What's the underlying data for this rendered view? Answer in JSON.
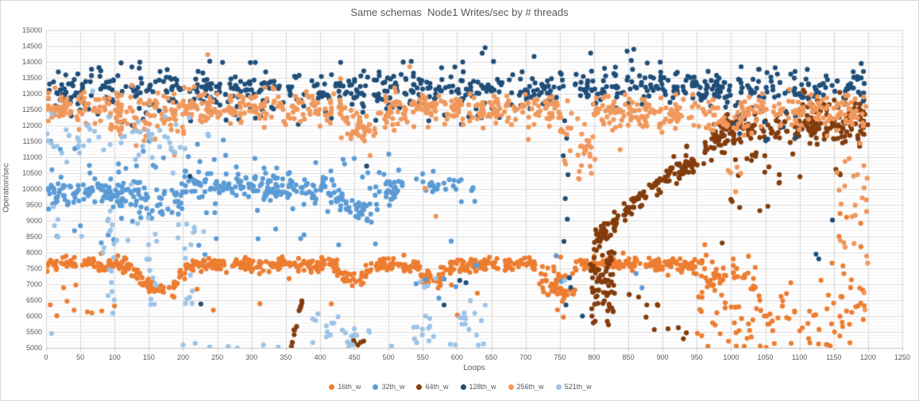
{
  "chart_data": {
    "type": "scatter",
    "title": "Same schemas  Node1 Writes/sec by # threads",
    "xlabel": "Loops",
    "ylabel": "Operation/sec",
    "xlim": [
      0,
      1250
    ],
    "ylim": [
      5000,
      15000
    ],
    "x_tick_step": 50,
    "y_tick_step": 500,
    "y_minor_step": 100,
    "grid": true,
    "legend_position": "bottom",
    "marker_radius": 3.1,
    "colors": {
      "grid_major": "#D9D9D9",
      "grid_minor": "#F2F2F2",
      "axis_line": "#BFBFBF",
      "tick_text": "#595959",
      "title_text": "#595959"
    },
    "series": [
      {
        "name": "16th_w",
        "color": "#ED7D31",
        "clusters": [
          [
            0,
            120,
            7600,
            7600,
            115,
            85
          ],
          [
            120,
            152,
            7550,
            6950,
            140,
            26
          ],
          [
            150,
            188,
            6820,
            6820,
            120,
            26
          ],
          [
            186,
            206,
            6950,
            7500,
            110,
            14
          ],
          [
            204,
            420,
            7620,
            7620,
            105,
            155
          ],
          [
            420,
            452,
            7500,
            7050,
            120,
            24
          ],
          [
            450,
            478,
            7050,
            7450,
            110,
            18
          ],
          [
            476,
            546,
            7600,
            7600,
            100,
            52
          ],
          [
            544,
            592,
            7250,
            7250,
            190,
            40
          ],
          [
            590,
            714,
            7620,
            7620,
            105,
            92
          ],
          [
            715,
            772,
            7050,
            7050,
            420,
            50
          ],
          [
            772,
            958,
            7620,
            7620,
            115,
            135
          ],
          [
            956,
            1038,
            7400,
            7350,
            240,
            40
          ],
          [
            950,
            1200,
            6100,
            6050,
            620,
            85
          ],
          [
            1140,
            1200,
            8300,
            8300,
            850,
            10
          ],
          [
            0,
            45,
            6350,
            6350,
            420,
            6
          ],
          [
            55,
            135,
            6050,
            6050,
            330,
            4
          ],
          [
            200,
            700,
            6600,
            6600,
            380,
            7
          ]
        ],
        "uclusters": [
          [
            1000,
            1200,
            4990,
            5160,
            12
          ]
        ],
        "points": []
      },
      {
        "name": "32th_w",
        "color": "#5B9BD5",
        "clusters": [
          [
            0,
            100,
            9900,
            9900,
            215,
            80
          ],
          [
            98,
            200,
            9750,
            9750,
            270,
            70
          ],
          [
            198,
            422,
            10050,
            10050,
            215,
            150
          ],
          [
            420,
            458,
            9850,
            9250,
            190,
            28
          ],
          [
            456,
            522,
            9350,
            10150,
            210,
            42
          ],
          [
            538,
            626,
            10080,
            10080,
            240,
            28
          ],
          [
            0,
            520,
            10650,
            10650,
            380,
            42
          ],
          [
            0,
            520,
            8750,
            8750,
            480,
            28
          ],
          [
            540,
            632,
            7300,
            7300,
            420,
            8
          ],
          [
            738,
            782,
            7200,
            7200,
            260,
            3
          ],
          [
            858,
            882,
            7000,
            7000,
            160,
            2
          ]
        ],
        "uclusters": [],
        "points": []
      },
      {
        "name": "64th_w",
        "color": "#843C0C",
        "clusters": [
          [
            357,
            374,
            5020,
            6500,
            60,
            13
          ],
          [
            446,
            464,
            5120,
            5120,
            90,
            5
          ],
          [
            793,
            830,
            7300,
            7300,
            620,
            62
          ],
          [
            800,
            850,
            8250,
            9450,
            170,
            40
          ],
          [
            845,
            920,
            9300,
            10700,
            190,
            52
          ],
          [
            920,
            995,
            10500,
            11700,
            200,
            55
          ],
          [
            974,
            1200,
            11880,
            11880,
            270,
            165
          ],
          [
            1098,
            1200,
            12520,
            12520,
            240,
            40
          ],
          [
            988,
            1102,
            10600,
            10600,
            330,
            14
          ],
          [
            850,
            900,
            6300,
            6300,
            300,
            4
          ],
          [
            920,
            960,
            5400,
            5400,
            250,
            3
          ],
          [
            1035,
            1065,
            9480,
            9480,
            160,
            2
          ],
          [
            993,
            1032,
            9500,
            9500,
            190,
            3
          ],
          [
            1135,
            1165,
            10300,
            10300,
            200,
            3
          ]
        ],
        "uclusters": [
          [
            795,
            832,
            5650,
            6900,
            10
          ]
        ],
        "points": [
          [
            888,
            5575
          ],
          [
            865,
            6600
          ],
          [
            877,
            6350
          ],
          [
            987,
            8300
          ],
          [
            908,
            5600
          ]
        ]
      },
      {
        "name": "128th_w",
        "color": "#1F4E79",
        "clusters": [
          [
            0,
            756,
            13150,
            13150,
            270,
            410
          ],
          [
            770,
            1200,
            13180,
            13180,
            270,
            235
          ],
          [
            0,
            1200,
            13880,
            13880,
            130,
            22
          ],
          [
            600,
            900,
            14320,
            14320,
            90,
            3
          ],
          [
            0,
            750,
            12400,
            12400,
            280,
            38
          ],
          [
            1000,
            1105,
            12050,
            12050,
            300,
            14
          ]
        ],
        "uclusters": [],
        "points": [
          [
            757,
            12150
          ],
          [
            760,
            11600
          ],
          [
            755,
            11050
          ],
          [
            762,
            10450
          ],
          [
            758,
            9700
          ],
          [
            761,
            9050
          ],
          [
            756,
            8350
          ],
          [
            764,
            7200
          ],
          [
            766,
            6900
          ],
          [
            759,
            6350
          ],
          [
            783,
            6000
          ],
          [
            1124,
            7950
          ],
          [
            1128,
            7800
          ],
          [
            1148,
            9020
          ],
          [
            468,
            10720
          ],
          [
            210,
            10400
          ],
          [
            226,
            6380
          ],
          [
            604,
            7120
          ],
          [
            581,
            6350
          ],
          [
            613,
            7050
          ],
          [
            641,
            14450
          ],
          [
            795,
            14280
          ],
          [
            858,
            14400
          ],
          [
            239,
            14020
          ]
        ]
      },
      {
        "name": "256th_w",
        "color": "#F0985C",
        "clusters": [
          [
            0,
            96,
            12550,
            12550,
            240,
            78
          ],
          [
            94,
            202,
            12280,
            12280,
            430,
            88
          ],
          [
            200,
            432,
            12560,
            12560,
            240,
            180
          ],
          [
            430,
            487,
            11920,
            11920,
            290,
            44
          ],
          [
            485,
            750,
            12520,
            12520,
            260,
            200
          ],
          [
            746,
            802,
            12250,
            11050,
            330,
            32
          ],
          [
            798,
            1200,
            12420,
            12420,
            290,
            290
          ],
          [
            1148,
            1200,
            9900,
            9900,
            780,
            18
          ],
          [
            1158,
            1200,
            7800,
            7800,
            650,
            8
          ],
          [
            748,
            792,
            10700,
            10700,
            280,
            6
          ],
          [
            982,
            1018,
            10250,
            10250,
            300,
            5
          ]
        ],
        "uclusters": [],
        "points": [
          [
            236,
            14230
          ],
          [
            531,
            13850
          ],
          [
            553,
            10020
          ],
          [
            569,
            9140
          ],
          [
            430,
            13470
          ],
          [
            704,
            11560
          ],
          [
            838,
            11240
          ]
        ]
      },
      {
        "name": "521th_w",
        "color": "#9DC3E6",
        "clusters": [
          [
            0,
            238,
            11500,
            11500,
            470,
            58
          ],
          [
            0,
            242,
            8600,
            8600,
            750,
            22
          ],
          [
            388,
            436,
            5900,
            5350,
            330,
            12
          ],
          [
            436,
            474,
            5280,
            5280,
            200,
            10
          ],
          [
            536,
            568,
            5600,
            5600,
            330,
            12
          ],
          [
            594,
            642,
            5750,
            5750,
            460,
            14
          ],
          [
            545,
            578,
            7050,
            7050,
            190,
            5
          ]
        ],
        "uclusters": [
          [
            90,
            106,
            5000,
            9400,
            12
          ],
          [
            144,
            163,
            5050,
            8800,
            10
          ],
          [
            200,
            219,
            4950,
            9350,
            12
          ],
          [
            85,
            640,
            4990,
            5130,
            14
          ]
        ],
        "points": [
          [
            8,
            5450
          ],
          [
            757,
            7120
          ]
        ]
      }
    ]
  }
}
